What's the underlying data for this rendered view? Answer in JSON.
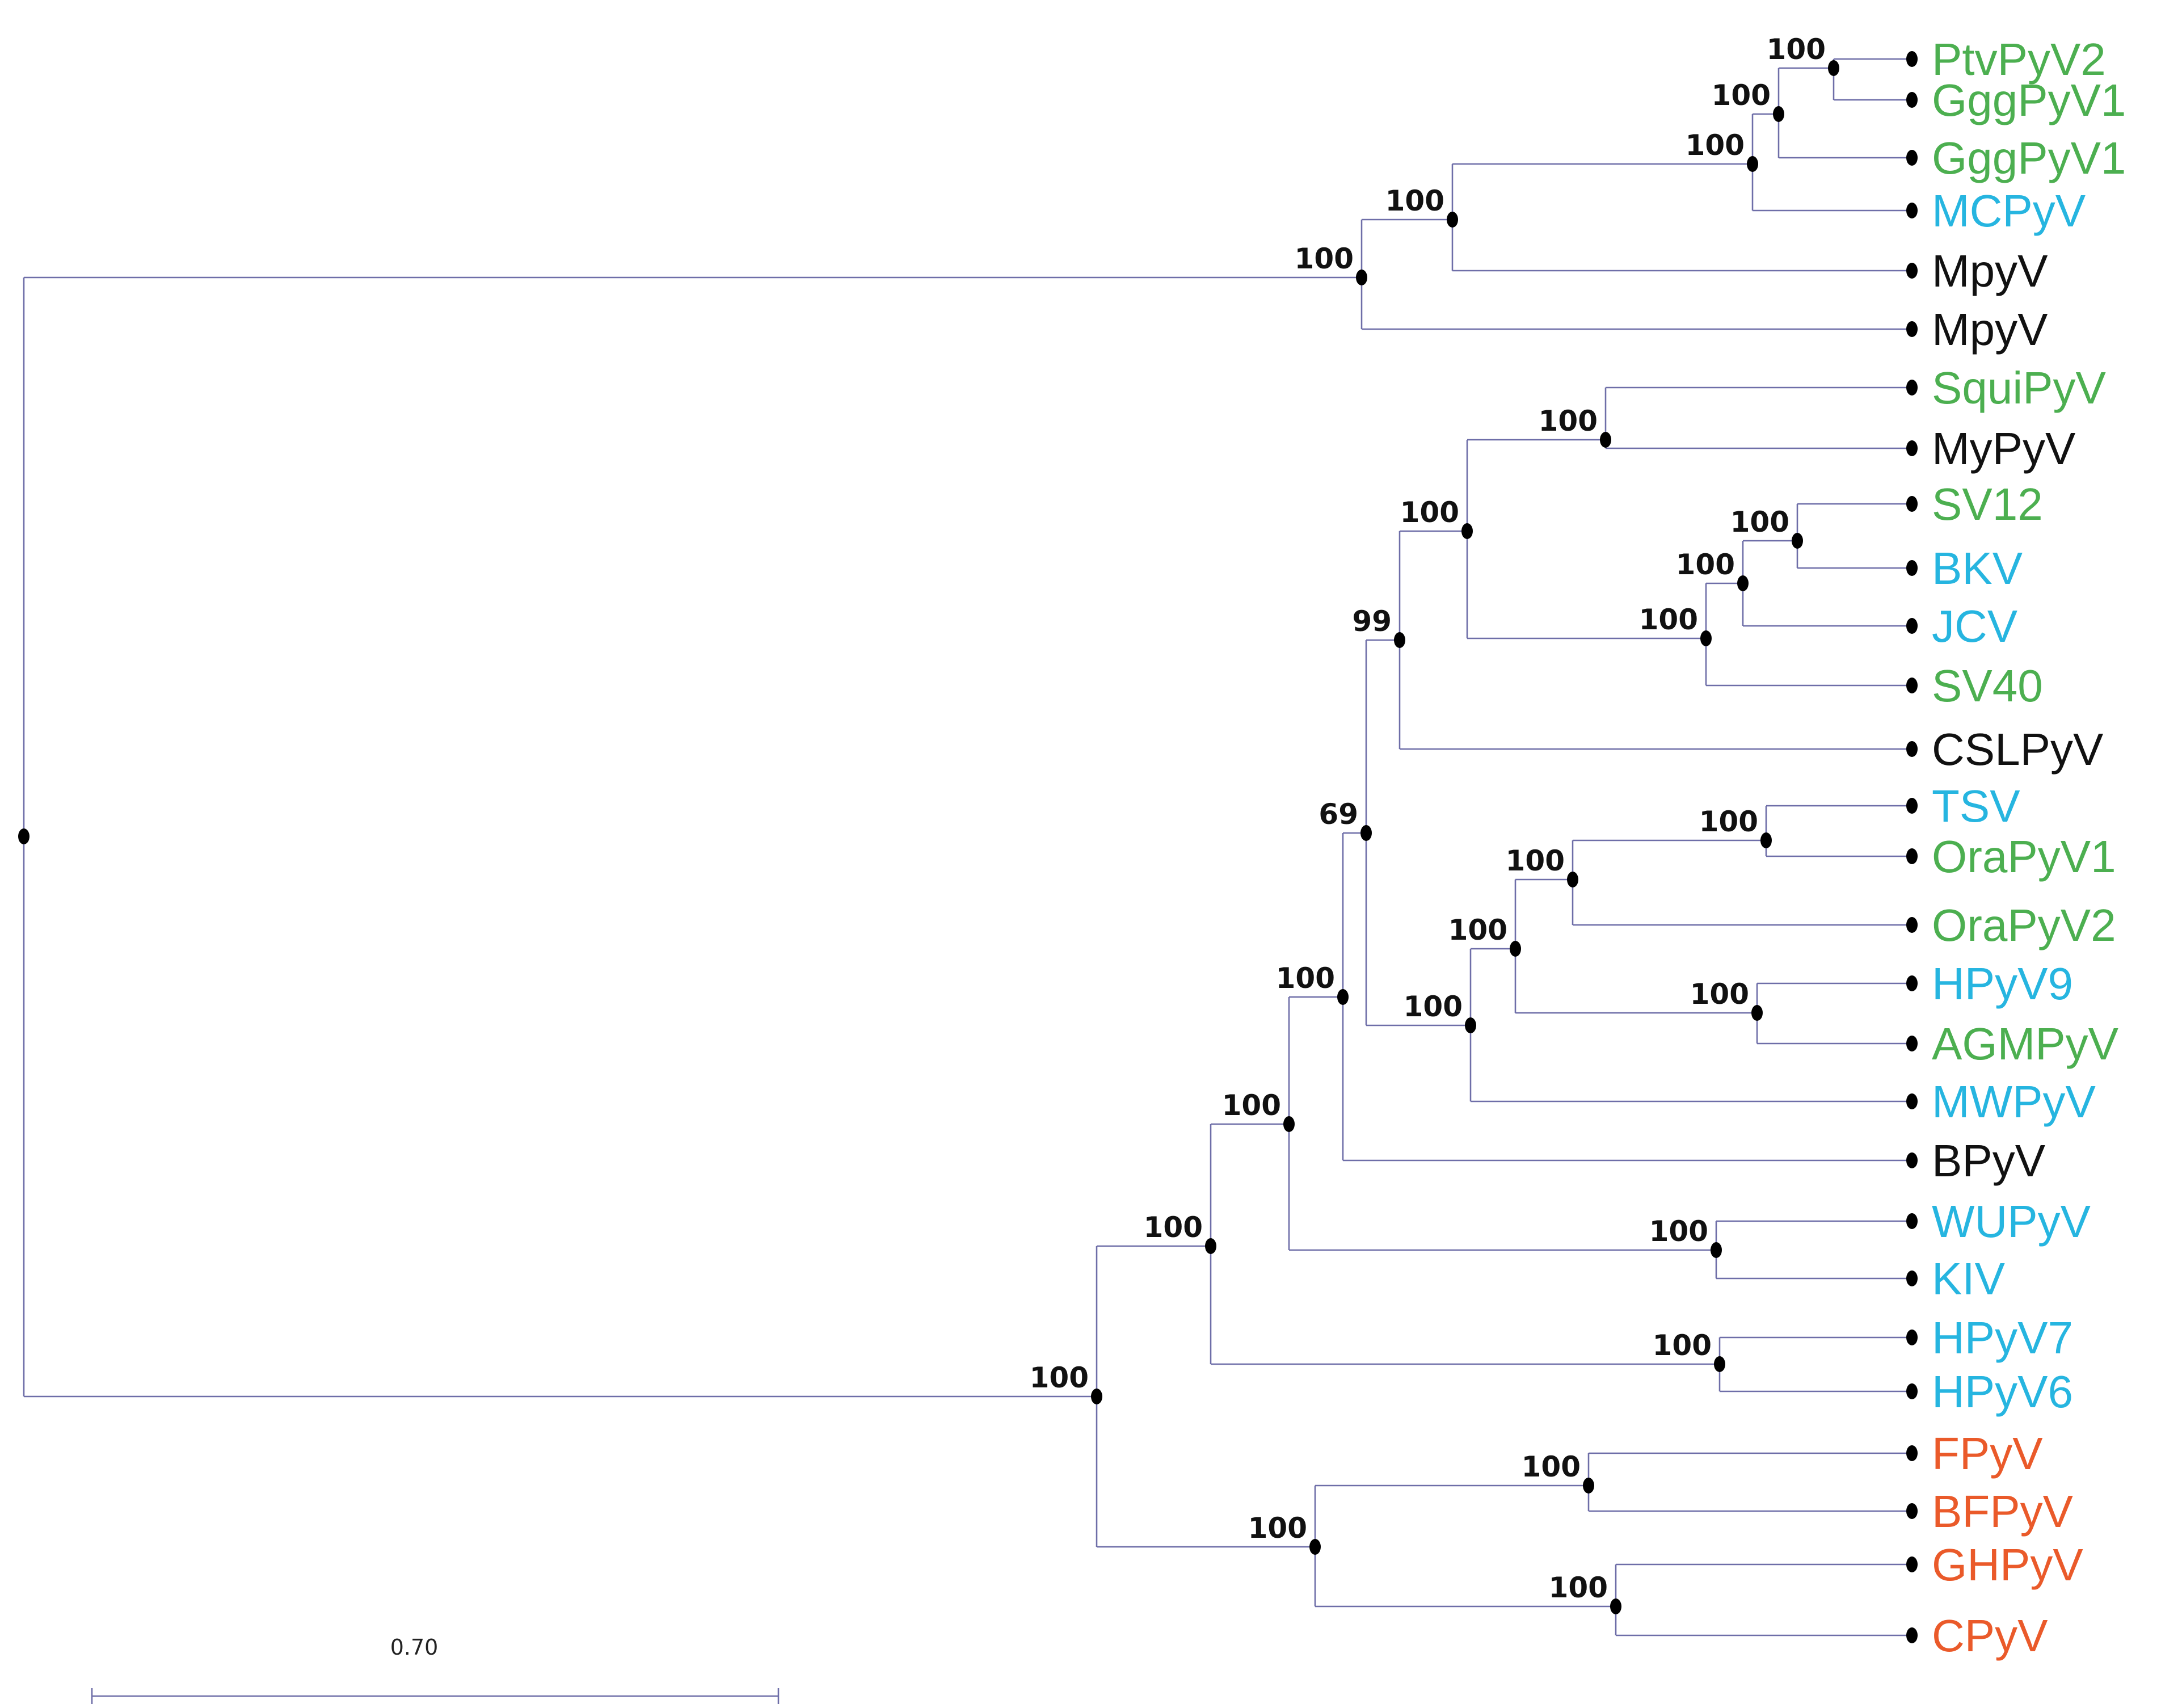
{
  "colors": {
    "branch": "#6e6ea8",
    "dot": "#000000",
    "green": "#4caf50",
    "blue": "#26b5e0",
    "black": "#111111",
    "red": "#ea5a2a"
  },
  "scale_bar": {
    "label": "0.70"
  },
  "taxa": [
    {
      "label": "PtvPyV2",
      "color": "green"
    },
    {
      "label": "GggPyV1",
      "color": "green"
    },
    {
      "label": "GggPyV1",
      "color": "green"
    },
    {
      "label": "MCPyV",
      "color": "blue"
    },
    {
      "label": "MpyV",
      "color": "black"
    },
    {
      "label": "MpyV",
      "color": "black"
    },
    {
      "label": "SquiPyV",
      "color": "green"
    },
    {
      "label": "MyPyV",
      "color": "black"
    },
    {
      "label": "SV12",
      "color": "green"
    },
    {
      "label": "BKV",
      "color": "blue"
    },
    {
      "label": "JCV",
      "color": "blue"
    },
    {
      "label": "SV40",
      "color": "green"
    },
    {
      "label": "CSLPyV",
      "color": "black"
    },
    {
      "label": "TSV",
      "color": "blue"
    },
    {
      "label": "OraPyV1",
      "color": "green"
    },
    {
      "label": "OraPyV2",
      "color": "green"
    },
    {
      "label": "HPyV9",
      "color": "blue"
    },
    {
      "label": "AGMPyV",
      "color": "green"
    },
    {
      "label": "MWPyV",
      "color": "blue"
    },
    {
      "label": "BPyV",
      "color": "black"
    },
    {
      "label": "WUPyV",
      "color": "blue"
    },
    {
      "label": "KIV",
      "color": "blue"
    },
    {
      "label": "HPyV7",
      "color": "blue"
    },
    {
      "label": "HPyV6",
      "color": "blue"
    },
    {
      "label": "FPyV",
      "color": "red"
    },
    {
      "label": "BFPyV",
      "color": "red"
    },
    {
      "label": "GHPyV",
      "color": "red"
    },
    {
      "label": "CPyV",
      "color": "red"
    }
  ],
  "internal_nodes": [
    {
      "id": "n01",
      "children": [
        "t0",
        "t1"
      ],
      "support": "100"
    },
    {
      "id": "n02",
      "children": [
        "n01",
        "t2"
      ],
      "support": "100"
    },
    {
      "id": "n03",
      "children": [
        "n02",
        "t3"
      ],
      "support": "100"
    },
    {
      "id": "n04",
      "children": [
        "n03",
        "t4"
      ],
      "support": "100"
    },
    {
      "id": "n05",
      "children": [
        "n04",
        "t5"
      ],
      "support": "100"
    },
    {
      "id": "n06",
      "children": [
        "t6",
        "t7"
      ],
      "support": "100"
    },
    {
      "id": "n07",
      "children": [
        "t8",
        "t9"
      ],
      "support": "100"
    },
    {
      "id": "n08",
      "children": [
        "n07",
        "t10"
      ],
      "support": "100"
    },
    {
      "id": "n09",
      "children": [
        "n08",
        "t11"
      ],
      "support": "100"
    },
    {
      "id": "n10",
      "children": [
        "n06",
        "n09"
      ],
      "support": "100"
    },
    {
      "id": "n11",
      "children": [
        "n10",
        "t12"
      ],
      "support": "99"
    },
    {
      "id": "n12",
      "children": [
        "t13",
        "t14"
      ],
      "support": "100"
    },
    {
      "id": "n13",
      "children": [
        "n12",
        "t15"
      ],
      "support": "100"
    },
    {
      "id": "n14",
      "children": [
        "t16",
        "t17"
      ],
      "support": "100"
    },
    {
      "id": "n15",
      "children": [
        "n13",
        "n14"
      ],
      "support": "100"
    },
    {
      "id": "n16",
      "children": [
        "n15",
        "t18"
      ],
      "support": "100"
    },
    {
      "id": "n17",
      "children": [
        "n11",
        "n16"
      ],
      "support": "69"
    },
    {
      "id": "n18",
      "children": [
        "n17",
        "t19"
      ],
      "support": "100"
    },
    {
      "id": "n19",
      "children": [
        "t20",
        "t21"
      ],
      "support": "100"
    },
    {
      "id": "n20",
      "children": [
        "n18",
        "n19"
      ],
      "support": "100"
    },
    {
      "id": "n21",
      "children": [
        "t22",
        "t23"
      ],
      "support": "100"
    },
    {
      "id": "n22",
      "children": [
        "n20",
        "n21"
      ],
      "support": "100"
    },
    {
      "id": "n23",
      "children": [
        "t24",
        "t25"
      ],
      "support": "100"
    },
    {
      "id": "n24",
      "children": [
        "t26",
        "t27"
      ],
      "support": "100"
    },
    {
      "id": "n25",
      "children": [
        "n23",
        "n24"
      ],
      "support": "100"
    },
    {
      "id": "n26",
      "children": [
        "n22",
        "n25"
      ],
      "support": "100"
    },
    {
      "id": "root",
      "children": [
        "n05",
        "n26"
      ],
      "support": ""
    }
  ]
}
